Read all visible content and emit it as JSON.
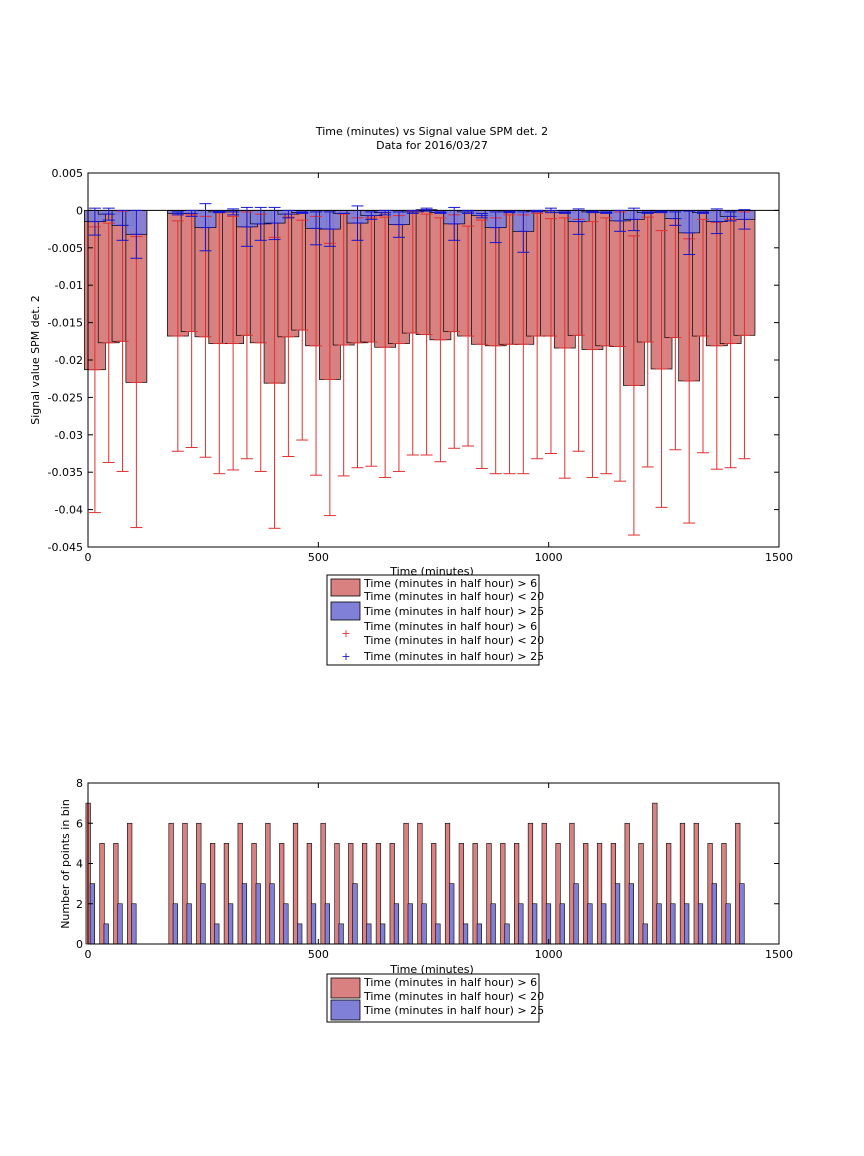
{
  "top_chart": {
    "title_line1": "Time (minutes) vs Signal value SPM det. 2",
    "title_line2": "Data for 2016/03/27",
    "xlabel": "Time (minutes)",
    "ylabel": "Signal value SPM det. 2",
    "xticks": [
      "0",
      "500",
      "1000",
      "1500"
    ],
    "yticks": [
      "0.005",
      "0",
      "-0.005",
      "-0.01",
      "-0.015",
      "-0.02",
      "-0.025",
      "-0.03",
      "-0.035",
      "-0.04",
      "-0.045"
    ],
    "legend": {
      "bar_red": [
        "Time (minutes in half hour) > 6",
        "Time (minutes in half hour) < 20"
      ],
      "bar_blue": [
        "Time (minutes in half hour) > 25"
      ],
      "marker_red": [
        "Time (minutes in half hour) > 6",
        "Time (minutes in half hour) < 20"
      ],
      "marker_blue": [
        "Time (minutes in half hour) > 25"
      ],
      "marker_symbol": "+"
    }
  },
  "bottom_chart": {
    "xlabel": "Time (minutes)",
    "ylabel": "Number of points in bin",
    "xticks": [
      "0",
      "500",
      "1000",
      "1500"
    ],
    "yticks": [
      "0",
      "2",
      "4",
      "6",
      "8"
    ],
    "legend": {
      "bar_red": [
        "Time (minutes in half hour) > 6",
        "Time (minutes in half hour) < 20"
      ],
      "bar_blue": [
        "Time (minutes in half hour) > 25"
      ]
    }
  },
  "colors": {
    "red_bar": "#d98080",
    "blue_bar": "#8080d9",
    "red_err": "#e03030",
    "blue_err": "#1515d0"
  },
  "chart_data": [
    {
      "type": "bar",
      "title": "Time (minutes) vs Signal value SPM det. 2",
      "subtitle": "Data for 2016/03/27",
      "xlabel": "Time (minutes)",
      "ylabel": "Signal value SPM det. 2",
      "xlim": [
        0,
        1500
      ],
      "ylim": [
        -0.045,
        0.005
      ],
      "grid": false,
      "legend_position": "bottom",
      "series": [
        {
          "name": "Time (minutes in half hour) > 6 Time (minutes in half hour) < 20",
          "points": [
            {
              "x": 15,
              "y": -0.0213,
              "err_lo": -0.0404,
              "err_hi": -0.0022
            },
            {
              "x": 45,
              "y": -0.0177,
              "err_lo": -0.0337,
              "err_hi": -0.0017
            },
            {
              "x": 75,
              "y": -0.0175,
              "err_lo": -0.0349,
              "err_hi": -0.0001
            },
            {
              "x": 105,
              "y": -0.023,
              "err_lo": -0.0424,
              "err_hi": -0.0035
            },
            {
              "x": 195,
              "y": -0.0168,
              "err_lo": -0.0322,
              "err_hi": -0.0014
            },
            {
              "x": 225,
              "y": -0.0162,
              "err_lo": -0.0317,
              "err_hi": -0.0006
            },
            {
              "x": 255,
              "y": -0.0169,
              "err_lo": -0.033,
              "err_hi": -0.0008
            },
            {
              "x": 285,
              "y": -0.0178,
              "err_lo": -0.0352,
              "err_hi": -0.0003
            },
            {
              "x": 315,
              "y": -0.0178,
              "err_lo": -0.0347,
              "err_hi": -0.0008
            },
            {
              "x": 345,
              "y": -0.0167,
              "err_lo": -0.0332,
              "err_hi": -0.0002
            },
            {
              "x": 375,
              "y": -0.0177,
              "err_lo": -0.0349,
              "err_hi": -0.0005
            },
            {
              "x": 405,
              "y": -0.0231,
              "err_lo": -0.0425,
              "err_hi": -0.0036
            },
            {
              "x": 435,
              "y": -0.0169,
              "err_lo": -0.0329,
              "err_hi": -0.0009
            },
            {
              "x": 465,
              "y": -0.016,
              "err_lo": -0.0307,
              "err_hi": -0.0013
            },
            {
              "x": 495,
              "y": -0.0181,
              "err_lo": -0.0354,
              "err_hi": -0.0008
            },
            {
              "x": 525,
              "y": -0.0226,
              "err_lo": -0.0408,
              "err_hi": -0.0044
            },
            {
              "x": 555,
              "y": -0.018,
              "err_lo": -0.0355,
              "err_hi": -0.0005
            },
            {
              "x": 585,
              "y": -0.0177,
              "err_lo": -0.0344,
              "err_hi": -0.001
            },
            {
              "x": 615,
              "y": -0.0176,
              "err_lo": -0.0342,
              "err_hi": -0.001
            },
            {
              "x": 645,
              "y": -0.0183,
              "err_lo": -0.0357,
              "err_hi": -0.0009
            },
            {
              "x": 675,
              "y": -0.0178,
              "err_lo": -0.0349,
              "err_hi": -0.0007
            },
            {
              "x": 705,
              "y": -0.0164,
              "err_lo": -0.0327,
              "err_hi": -0.0001
            },
            {
              "x": 735,
              "y": -0.0166,
              "err_lo": -0.0327,
              "err_hi": -0.0005
            },
            {
              "x": 765,
              "y": -0.0173,
              "err_lo": -0.0336,
              "err_hi": -0.001
            },
            {
              "x": 795,
              "y": -0.0162,
              "err_lo": -0.0318,
              "err_hi": -0.0006
            },
            {
              "x": 825,
              "y": -0.0168,
              "err_lo": -0.0315,
              "err_hi": -0.0021
            },
            {
              "x": 855,
              "y": -0.0179,
              "err_lo": -0.0345,
              "err_hi": -0.0013
            },
            {
              "x": 885,
              "y": -0.0181,
              "err_lo": -0.0352,
              "err_hi": -0.001
            },
            {
              "x": 915,
              "y": -0.0179,
              "err_lo": -0.0352,
              "err_hi": -0.0006
            },
            {
              "x": 945,
              "y": -0.0179,
              "err_lo": -0.0352,
              "err_hi": -0.0006
            },
            {
              "x": 975,
              "y": -0.0168,
              "err_lo": -0.0332,
              "err_hi": -0.0004
            },
            {
              "x": 1005,
              "y": -0.0168,
              "err_lo": -0.0325,
              "err_hi": -0.0011
            },
            {
              "x": 1035,
              "y": -0.0184,
              "err_lo": -0.0358,
              "err_hi": -0.001
            },
            {
              "x": 1065,
              "y": -0.0167,
              "err_lo": -0.0322,
              "err_hi": -0.0012
            },
            {
              "x": 1095,
              "y": -0.0186,
              "err_lo": -0.0357,
              "err_hi": -0.0015
            },
            {
              "x": 1125,
              "y": -0.0181,
              "err_lo": -0.0352,
              "err_hi": -0.001
            },
            {
              "x": 1155,
              "y": -0.0182,
              "err_lo": -0.0362,
              "err_hi": -0.0002
            },
            {
              "x": 1185,
              "y": -0.0234,
              "err_lo": -0.0434,
              "err_hi": -0.0034
            },
            {
              "x": 1215,
              "y": -0.0176,
              "err_lo": -0.0343,
              "err_hi": -0.0009
            },
            {
              "x": 1245,
              "y": -0.0212,
              "err_lo": -0.0397,
              "err_hi": -0.0027
            },
            {
              "x": 1275,
              "y": -0.017,
              "err_lo": -0.032,
              "err_hi": -0.002
            },
            {
              "x": 1305,
              "y": -0.0228,
              "err_lo": -0.0418,
              "err_hi": -0.0038
            },
            {
              "x": 1335,
              "y": -0.0168,
              "err_lo": -0.0324,
              "err_hi": -0.0012
            },
            {
              "x": 1365,
              "y": -0.0181,
              "err_lo": -0.0346,
              "err_hi": -0.0016
            },
            {
              "x": 1395,
              "y": -0.0178,
              "err_lo": -0.0344,
              "err_hi": -0.0012
            },
            {
              "x": 1425,
              "y": -0.0167,
              "err_lo": -0.0332,
              "err_hi": -0.0002
            }
          ]
        },
        {
          "name": "Time (minutes in half hour) > 25",
          "points": [
            {
              "x": 15,
              "y": -0.0015,
              "err_lo": -0.0033,
              "err_hi": 0.0003
            },
            {
              "x": 45,
              "y": -0.0005,
              "err_lo": -0.0013,
              "err_hi": 0.0003
            },
            {
              "x": 75,
              "y": -0.002,
              "err_lo": -0.004,
              "err_hi": 0.0
            },
            {
              "x": 105,
              "y": -0.0032,
              "err_lo": -0.0064,
              "err_hi": 0.0
            },
            {
              "x": 195,
              "y": -0.0004,
              "err_lo": -0.0006,
              "err_hi": -0.0002
            },
            {
              "x": 225,
              "y": -0.0004,
              "err_lo": -0.0008,
              "err_hi": 0.0
            },
            {
              "x": 255,
              "y": -0.0023,
              "err_lo": -0.0054,
              "err_hi": 0.0009
            },
            {
              "x": 285,
              "y": -0.0002,
              "err_lo": -0.0003,
              "err_hi": -0.0001
            },
            {
              "x": 315,
              "y": -0.0002,
              "err_lo": -0.0006,
              "err_hi": 0.0002
            },
            {
              "x": 345,
              "y": -0.0022,
              "err_lo": -0.0048,
              "err_hi": 0.0004
            },
            {
              "x": 375,
              "y": -0.0018,
              "err_lo": -0.004,
              "err_hi": 0.0004
            },
            {
              "x": 405,
              "y": -0.0017,
              "err_lo": -0.0039,
              "err_hi": 0.0004
            },
            {
              "x": 435,
              "y": -0.0005,
              "err_lo": -0.001,
              "err_hi": 0.0
            },
            {
              "x": 465,
              "y": -0.0003,
              "err_lo": -0.0004,
              "err_hi": -0.0002
            },
            {
              "x": 495,
              "y": -0.0024,
              "err_lo": -0.0046,
              "err_hi": -0.0002
            },
            {
              "x": 525,
              "y": -0.0025,
              "err_lo": -0.0048,
              "err_hi": -0.0002
            },
            {
              "x": 555,
              "y": -0.0004,
              "err_lo": -0.0004,
              "err_hi": -0.0004
            },
            {
              "x": 585,
              "y": -0.0017,
              "err_lo": -0.004,
              "err_hi": 0.0006
            },
            {
              "x": 615,
              "y": -0.0007,
              "err_lo": -0.0012,
              "err_hi": -0.0002
            },
            {
              "x": 645,
              "y": -0.0003,
              "err_lo": -0.0006,
              "err_hi": 0.0
            },
            {
              "x": 675,
              "y": -0.0019,
              "err_lo": -0.0036,
              "err_hi": -0.0002
            },
            {
              "x": 705,
              "y": -0.0002,
              "err_lo": -0.0004,
              "err_hi": 0.0
            },
            {
              "x": 735,
              "y": 0.0001,
              "err_lo": -0.0001,
              "err_hi": 0.0003
            },
            {
              "x": 765,
              "y": -0.0003,
              "err_lo": -0.0004,
              "err_hi": -0.0002
            },
            {
              "x": 795,
              "y": -0.0018,
              "err_lo": -0.004,
              "err_hi": 0.0004
            },
            {
              "x": 825,
              "y": -0.0002,
              "err_lo": -0.0004,
              "err_hi": 0.0
            },
            {
              "x": 855,
              "y": -0.0007,
              "err_lo": -0.001,
              "err_hi": -0.0004
            },
            {
              "x": 885,
              "y": -0.0023,
              "err_lo": -0.0043,
              "err_hi": -0.0002
            },
            {
              "x": 915,
              "y": -0.0002,
              "err_lo": -0.0003,
              "err_hi": -0.0001
            },
            {
              "x": 945,
              "y": -0.0028,
              "err_lo": -0.0056,
              "err_hi": -0.0002
            },
            {
              "x": 975,
              "y": -0.0001,
              "err_lo": -0.0002,
              "err_hi": 0.0
            },
            {
              "x": 1005,
              "y": 0.0,
              "err_lo": -0.0003,
              "err_hi": 0.0003
            },
            {
              "x": 1035,
              "y": -0.0003,
              "err_lo": -0.0004,
              "err_hi": -0.0002
            },
            {
              "x": 1065,
              "y": -0.0015,
              "err_lo": -0.0032,
              "err_hi": 0.0002
            },
            {
              "x": 1095,
              "y": -0.0002,
              "err_lo": -0.0003,
              "err_hi": -0.0001
            },
            {
              "x": 1125,
              "y": -0.0003,
              "err_lo": -0.0004,
              "err_hi": -0.0002
            },
            {
              "x": 1155,
              "y": -0.0014,
              "err_lo": -0.0028,
              "err_hi": 0.0
            },
            {
              "x": 1185,
              "y": -0.0012,
              "err_lo": -0.0027,
              "err_hi": 0.0003
            },
            {
              "x": 1215,
              "y": -0.0003,
              "err_lo": -0.0004,
              "err_hi": -0.0002
            },
            {
              "x": 1245,
              "y": -0.0002,
              "err_lo": -0.0003,
              "err_hi": -0.0001
            },
            {
              "x": 1275,
              "y": -0.0011,
              "err_lo": -0.002,
              "err_hi": -0.0002
            },
            {
              "x": 1305,
              "y": -0.003,
              "err_lo": -0.0059,
              "err_hi": -0.0001
            },
            {
              "x": 1335,
              "y": -0.0003,
              "err_lo": -0.0004,
              "err_hi": -0.0002
            },
            {
              "x": 1365,
              "y": -0.0015,
              "err_lo": -0.0031,
              "err_hi": 0.0002
            },
            {
              "x": 1395,
              "y": -0.0008,
              "err_lo": -0.0014,
              "err_hi": -0.0002
            },
            {
              "x": 1425,
              "y": -0.0012,
              "err_lo": -0.0025,
              "err_hi": 0.0001
            }
          ]
        }
      ]
    },
    {
      "type": "bar",
      "xlabel": "Time (minutes)",
      "ylabel": "Number of points in bin",
      "xlim": [
        0,
        1500
      ],
      "ylim": [
        0,
        8
      ],
      "grid": false,
      "legend_position": "bottom",
      "x": [
        15,
        45,
        75,
        105,
        195,
        225,
        255,
        285,
        315,
        345,
        375,
        405,
        435,
        465,
        495,
        525,
        555,
        585,
        615,
        645,
        675,
        705,
        735,
        765,
        795,
        825,
        855,
        885,
        915,
        945,
        975,
        1005,
        1035,
        1065,
        1095,
        1125,
        1155,
        1185,
        1215,
        1245,
        1275,
        1305,
        1335,
        1365,
        1395,
        1425
      ],
      "series": [
        {
          "name": "Time (minutes in half hour) > 6 Time (minutes in half hour) < 20",
          "values": [
            7,
            5,
            5,
            6,
            6,
            6,
            6,
            5,
            5,
            6,
            5,
            6,
            5,
            6,
            5,
            6,
            5,
            5,
            5,
            5,
            5,
            6,
            6,
            5,
            6,
            5,
            5,
            5,
            5,
            5,
            6,
            6,
            5,
            6,
            5,
            5,
            5,
            6,
            5,
            7,
            5,
            6,
            6,
            5,
            5,
            6
          ]
        },
        {
          "name": "Time (minutes in half hour) > 25",
          "values": [
            3,
            1,
            2,
            2,
            2,
            2,
            3,
            1,
            2,
            3,
            3,
            3,
            2,
            1,
            2,
            2,
            1,
            3,
            1,
            1,
            2,
            2,
            2,
            1,
            3,
            1,
            1,
            2,
            1,
            2,
            2,
            2,
            2,
            3,
            2,
            2,
            3,
            3,
            1,
            2,
            2,
            2,
            2,
            3,
            2,
            3
          ]
        }
      ]
    }
  ]
}
